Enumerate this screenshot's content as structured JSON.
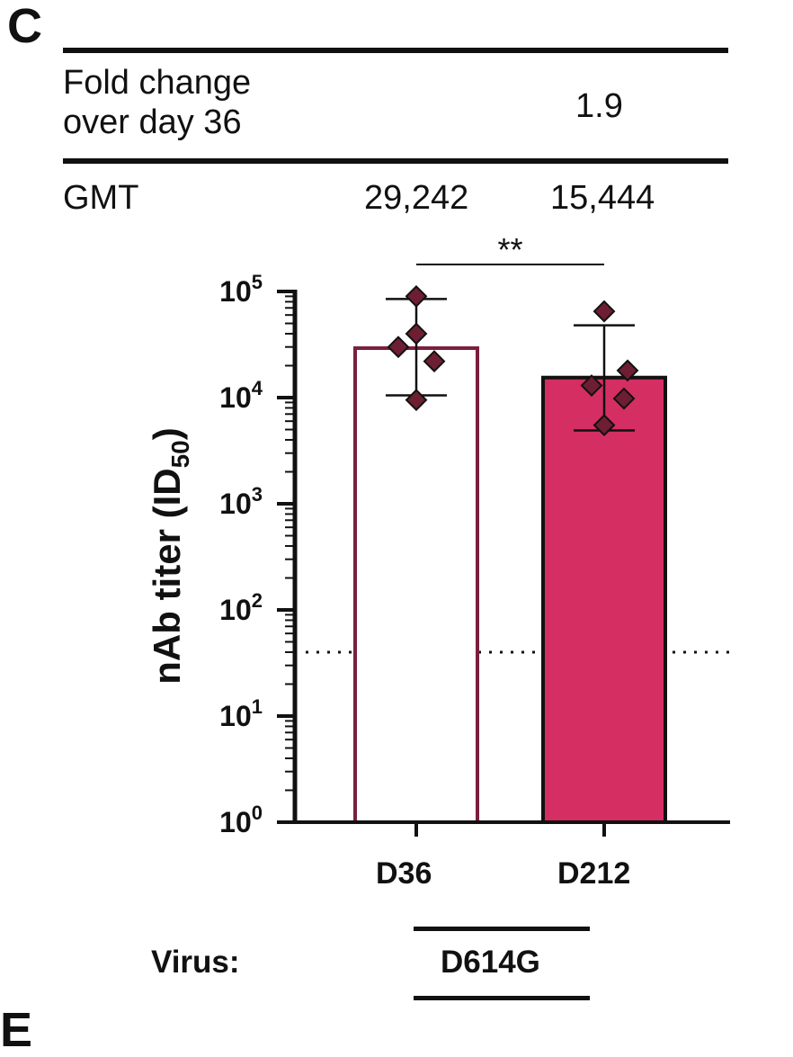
{
  "panel_label": "C",
  "next_panel_label": "E",
  "table": {
    "fold_change_label_line1": "Fold change",
    "fold_change_label_line2": "over day 36",
    "fold_change_value": "1.9",
    "gmt_label": "GMT",
    "gmt_values": [
      "29,242",
      "15,444"
    ]
  },
  "significance": "**",
  "virus_label": "Virus:",
  "virus_name": "D614G",
  "chart_data": {
    "type": "bar",
    "scale": "log10",
    "ylabel": "nAb titer (ID50)",
    "ylim": [
      1,
      100000
    ],
    "yticks": [
      {
        "base": "10",
        "exp": "0"
      },
      {
        "base": "10",
        "exp": "1"
      },
      {
        "base": "10",
        "exp": "2"
      },
      {
        "base": "10",
        "exp": "3"
      },
      {
        "base": "10",
        "exp": "4"
      },
      {
        "base": "10",
        "exp": "5"
      }
    ],
    "categories": [
      "D36",
      "D212"
    ],
    "values": [
      29242,
      15444
    ],
    "error_high": [
      85000,
      48000
    ],
    "error_low": [
      10500,
      4900
    ],
    "bar_fill": [
      "#ffffff",
      "#d42e63"
    ],
    "bar_stroke": [
      "#7a1f3d",
      "#111111"
    ],
    "point_color": "#6e1e32",
    "points": [
      [
        90000,
        40000,
        30000,
        22000,
        9500
      ],
      [
        65000,
        18000,
        13000,
        9800,
        5500
      ]
    ],
    "limit_of_detection": 40,
    "significance": "**"
  }
}
